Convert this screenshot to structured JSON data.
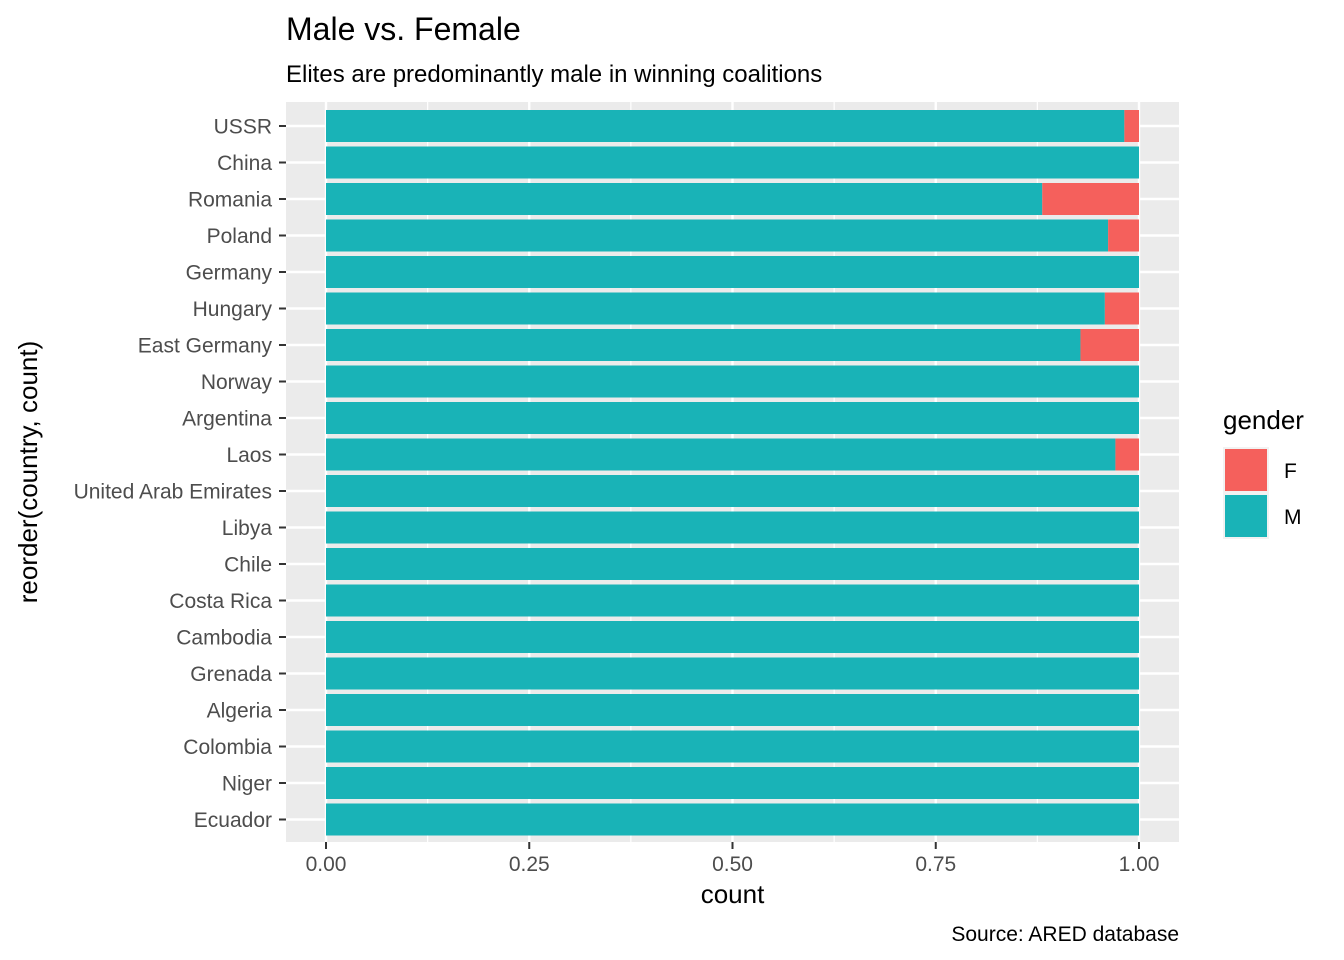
{
  "chart_data": {
    "type": "bar",
    "orientation": "horizontal",
    "stacked": true,
    "position": "fill",
    "title": "Male vs. Female",
    "subtitle": "Elites are predominantly male in winning coalitions",
    "caption": "Source: ARED database",
    "xlabel": "count",
    "ylabel": "reorder(country, count)",
    "xlim": [
      0,
      1
    ],
    "xticks": [
      "0.00",
      "0.25",
      "0.50",
      "0.75",
      "1.00"
    ],
    "xtick_values": [
      0,
      0.25,
      0.5,
      0.75,
      1.0
    ],
    "categories": [
      "USSR",
      "China",
      "Romania",
      "Poland",
      "Germany",
      "Hungary",
      "East Germany",
      "Norway",
      "Argentina",
      "Laos",
      "United Arab Emirates",
      "Libya",
      "Chile",
      "Costa Rica",
      "Cambodia",
      "Grenada",
      "Algeria",
      "Colombia",
      "Niger",
      "Ecuador"
    ],
    "series": [
      {
        "name": "M",
        "color": "#19B3B7",
        "values": [
          0.982,
          1.0,
          0.881,
          0.962,
          1.0,
          0.958,
          0.928,
          1.0,
          1.0,
          0.971,
          1.0,
          1.0,
          1.0,
          1.0,
          1.0,
          1.0,
          1.0,
          1.0,
          1.0,
          1.0
        ]
      },
      {
        "name": "F",
        "color": "#F5605C",
        "values": [
          0.018,
          0.0,
          0.119,
          0.038,
          0.0,
          0.042,
          0.072,
          0.0,
          0.0,
          0.029,
          0.0,
          0.0,
          0.0,
          0.0,
          0.0,
          0.0,
          0.0,
          0.0,
          0.0,
          0.0
        ]
      }
    ],
    "legend": {
      "title": "gender",
      "position": "right",
      "entries": [
        {
          "label": "F",
          "color": "#F5605C"
        },
        {
          "label": "M",
          "color": "#19B3B7"
        }
      ]
    },
    "grid": true,
    "panel_background": "#EBEBEB"
  }
}
